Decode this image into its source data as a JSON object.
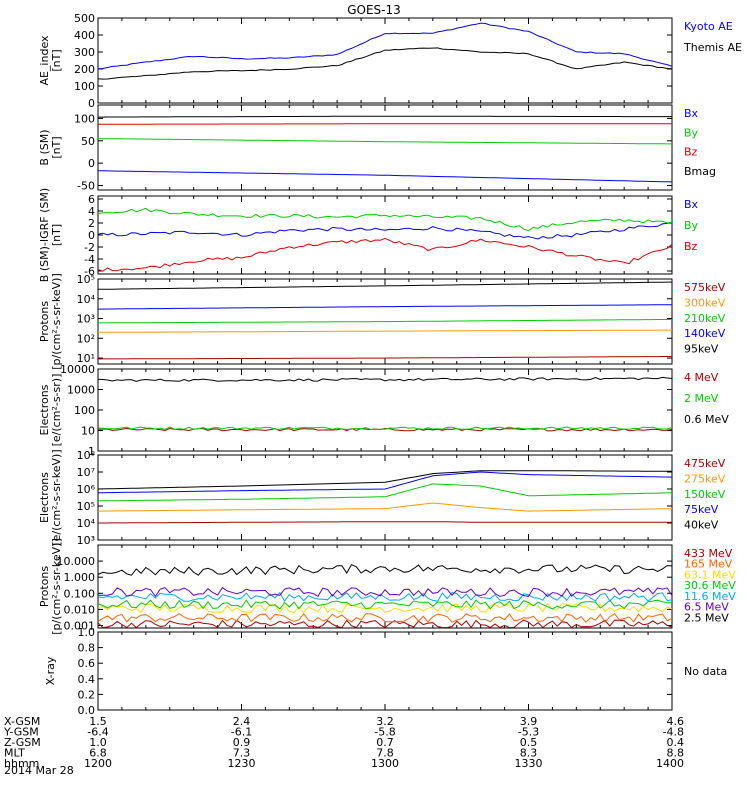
{
  "title": "GOES-13",
  "panels": [
    {
      "ylabel": [
        "AE_index",
        "[nT]"
      ],
      "scale": "linear",
      "ylim": [
        0,
        500
      ],
      "yticks": [
        "0",
        "100",
        "200",
        "300",
        "400",
        "500"
      ],
      "ytick_values": [
        0,
        100,
        200,
        300,
        400,
        500
      ],
      "legend": [
        {
          "label": "Kyoto AE",
          "color": "#0000ff"
        },
        {
          "label": "Themis AE",
          "color": "#000000"
        }
      ]
    },
    {
      "ylabel": [
        "B (SM)",
        "[nT]"
      ],
      "scale": "linear",
      "ylim": [
        -60,
        130
      ],
      "yticks": [
        "-50",
        "0",
        "50",
        "100"
      ],
      "ytick_values": [
        -50,
        0,
        50,
        100
      ],
      "legend": [
        {
          "label": "Bx",
          "color": "#0000ff"
        },
        {
          "label": "By",
          "color": "#00cc00"
        },
        {
          "label": "Bz",
          "color": "#dd0000"
        },
        {
          "label": "Bmag",
          "color": "#000000"
        }
      ]
    },
    {
      "ylabel": [
        "B (SM)-IGRF (SM)",
        "[nT]"
      ],
      "scale": "linear",
      "ylim": [
        -6.5,
        6.5
      ],
      "yticks": [
        "-6",
        "-4",
        "-2",
        "0",
        "2",
        "4",
        "6"
      ],
      "ytick_values": [
        -6,
        -4,
        -2,
        0,
        2,
        4,
        6
      ],
      "legend": [
        {
          "label": "Bx",
          "color": "#0000ff"
        },
        {
          "label": "By",
          "color": "#00cc00"
        },
        {
          "label": "Bz",
          "color": "#dd0000"
        }
      ]
    },
    {
      "ylabel": [
        "Protons",
        "[p/(cm²-s-sr-keV)]"
      ],
      "scale": "log",
      "ylim": [
        5,
        100000
      ],
      "yticks": [
        "10¹",
        "10²",
        "10³",
        "10⁴",
        "10⁵"
      ],
      "ytick_values": [
        10,
        100,
        1000,
        10000,
        100000
      ],
      "legend": [
        {
          "label": "575keV",
          "color": "#aa0000"
        },
        {
          "label": "300keV",
          "color": "#ff9900"
        },
        {
          "label": "210keV",
          "color": "#00cc00"
        },
        {
          "label": "140keV",
          "color": "#0000ff"
        },
        {
          "label": "95keV",
          "color": "#000000"
        }
      ]
    },
    {
      "ylabel": [
        "Electrons",
        "[e/(cm²-s-sr)]"
      ],
      "scale": "log",
      "ylim": [
        1,
        10000
      ],
      "yticks": [
        "1",
        "10",
        "100",
        "1000",
        "10000"
      ],
      "ytick_values": [
        1,
        10,
        100,
        1000,
        10000
      ],
      "legend": [
        {
          "label": "4 MeV",
          "color": "#aa0000"
        },
        {
          "label": "2 MeV",
          "color": "#00cc00"
        },
        {
          "label": "0.6 MeV",
          "color": "#000000"
        }
      ]
    },
    {
      "ylabel": [
        "Electrons",
        "[e/(cm²-s-sr-keV)]"
      ],
      "scale": "log",
      "ylim": [
        1000,
        100000000
      ],
      "yticks": [
        "10³",
        "10⁴",
        "10⁵",
        "10⁶",
        "10⁷",
        "10⁸"
      ],
      "ytick_values": [
        1000,
        10000,
        100000,
        1000000,
        10000000,
        100000000
      ],
      "legend": [
        {
          "label": "475keV",
          "color": "#aa0000"
        },
        {
          "label": "275keV",
          "color": "#ff9900"
        },
        {
          "label": "150keV",
          "color": "#00cc00"
        },
        {
          "label": "75keV",
          "color": "#0000ff"
        },
        {
          "label": "40keV",
          "color": "#000000"
        }
      ]
    },
    {
      "ylabel": [
        "Protons",
        "[p/(cm²-s-sr-keV)]"
      ],
      "scale": "log",
      "ylim": [
        0.0007,
        100
      ],
      "yticks": [
        "0.001",
        "0.010",
        "0.100",
        "1.000",
        "10.000"
      ],
      "ytick_values": [
        0.001,
        0.01,
        0.1,
        1,
        10
      ],
      "legend": [
        {
          "label": "433 MeV",
          "color": "#aa0000"
        },
        {
          "label": "165 MeV",
          "color": "#ff6600"
        },
        {
          "label": "63.1 MeV",
          "color": "#ffdd00"
        },
        {
          "label": "30.6 MeV",
          "color": "#00cc00"
        },
        {
          "label": "11.6 MeV",
          "color": "#00aaff"
        },
        {
          "label": "6.5 MeV",
          "color": "#6600cc"
        },
        {
          "label": "2.5 MeV",
          "color": "#000000"
        }
      ]
    },
    {
      "ylabel": [
        "X-ray"
      ],
      "scale": "linear",
      "ylim": [
        0,
        1
      ],
      "yticks": [
        "0.0",
        "0.2",
        "0.4",
        "0.6",
        "0.8",
        "1.0"
      ],
      "ytick_values": [
        0,
        0.2,
        0.4,
        0.6,
        0.8,
        1.0
      ],
      "legend": [],
      "nodata": "No data"
    }
  ],
  "footer": {
    "rows": [
      {
        "label": "X-GSM",
        "values": [
          "1.5",
          "2.4",
          "3.2",
          "3.9",
          "4.6"
        ]
      },
      {
        "label": "Y-GSM",
        "values": [
          "-6.4",
          "-6.1",
          "-5.8",
          "-5.3",
          "-4.8"
        ]
      },
      {
        "label": "Z-GSM",
        "values": [
          "1.0",
          "0.9",
          "0.7",
          "0.5",
          "0.4"
        ]
      },
      {
        "label": "MLT",
        "values": [
          "6.8",
          "7.3",
          "7.8",
          "8.3",
          "8.8"
        ]
      },
      {
        "label": "hhmm",
        "values": [
          "1200",
          "1230",
          "1300",
          "1330",
          "1400"
        ]
      }
    ],
    "date": "2014 Mar 28"
  },
  "chart_data": {
    "type": "line",
    "title": "GOES-13",
    "x_label": "hhmm",
    "x_ticks": [
      "1200",
      "1230",
      "1300",
      "1330",
      "1400"
    ],
    "x_range": [
      "1200",
      "1400"
    ],
    "panels": [
      {
        "x": [
          "1200",
          "1210",
          "1220",
          "1230",
          "1240",
          "1250",
          "1300",
          "1310",
          "1320",
          "1330",
          "1340",
          "1350",
          "1400"
        ],
        "series": [
          {
            "name": "Kyoto AE",
            "values": [
              200,
              240,
              275,
              260,
              265,
              285,
              410,
              410,
              470,
              420,
              300,
              290,
              215
            ]
          },
          {
            "name": "Themis AE",
            "values": [
              140,
              160,
              185,
              190,
              200,
              220,
              310,
              325,
              300,
              290,
              200,
              240,
              200
            ]
          }
        ]
      },
      {
        "x": [
          "1200",
          "1300",
          "1400"
        ],
        "series": [
          {
            "name": "Bx",
            "values": [
              -17,
              -27,
              -42
            ]
          },
          {
            "name": "By",
            "values": [
              55,
              48,
              43
            ]
          },
          {
            "name": "Bz",
            "values": [
              87,
              88,
              88
            ]
          },
          {
            "name": "Bmag",
            "values": [
              103,
              105,
              104
            ]
          }
        ]
      },
      {
        "x": [
          "1200",
          "1210",
          "1220",
          "1230",
          "1240",
          "1250",
          "1300",
          "1310",
          "1320",
          "1330",
          "1340",
          "1350",
          "1400"
        ],
        "series": [
          {
            "name": "Bx",
            "values": [
              0,
              0.2,
              0.5,
              0,
              0.8,
              1,
              0.8,
              1.2,
              0.5,
              -0.5,
              0,
              1,
              2
            ]
          },
          {
            "name": "By",
            "values": [
              3.8,
              4.2,
              3.5,
              3.2,
              3.2,
              3.0,
              3.3,
              3.0,
              2.8,
              1.0,
              2.2,
              2.5,
              2.0
            ]
          },
          {
            "name": "Bz",
            "values": [
              -5.8,
              -5.5,
              -4.3,
              -3.8,
              -2.0,
              -1.2,
              -0.8,
              -2.5,
              -0.8,
              -2.0,
              -3.5,
              -4.8,
              -1.8
            ]
          }
        ]
      },
      {
        "x": [
          "1200",
          "1300",
          "1400"
        ],
        "series": [
          {
            "name": "575keV",
            "values": [
              9,
              10,
              12
            ]
          },
          {
            "name": "300keV",
            "values": [
              200,
              230,
              260
            ]
          },
          {
            "name": "210keV",
            "values": [
              600,
              700,
              900
            ]
          },
          {
            "name": "140keV",
            "values": [
              3000,
              4000,
              5000
            ]
          },
          {
            "name": "95keV",
            "values": [
              30000,
              45000,
              70000
            ]
          }
        ]
      },
      {
        "x": [
          "1200",
          "1300",
          "1400"
        ],
        "series": [
          {
            "name": "4 MeV",
            "values": [
              11,
              11,
              11
            ]
          },
          {
            "name": "2 MeV",
            "values": [
              13,
              13,
              13
            ]
          },
          {
            "name": "0.6 MeV",
            "values": [
              2800,
              3000,
              3500
            ]
          }
        ]
      },
      {
        "x": [
          "1200",
          "1230",
          "1300",
          "1310",
          "1320",
          "1330",
          "1400"
        ],
        "series": [
          {
            "name": "475keV",
            "values": [
              10000,
              11000,
              12000,
              12000,
              11000,
              11000,
              11000
            ]
          },
          {
            "name": "275keV",
            "values": [
              50000,
              60000,
              70000,
              150000,
              80000,
              50000,
              70000
            ]
          },
          {
            "name": "150keV",
            "values": [
              200000,
              250000,
              350000,
              2000000,
              1500000,
              400000,
              600000
            ]
          },
          {
            "name": "75keV",
            "values": [
              600000,
              800000,
              1000000,
              6000000,
              10000000,
              7000000,
              5000000
            ]
          },
          {
            "name": "40keV",
            "values": [
              1000000,
              1500000,
              2500000,
              8000000,
              12000000,
              12000000,
              11000000
            ]
          }
        ]
      },
      {
        "x": [
          "1200",
          "1300",
          "1400"
        ],
        "series": [
          {
            "name": "433 MeV",
            "values": [
              0.0012,
              0.0012,
              0.0012
            ]
          },
          {
            "name": "165 MeV",
            "values": [
              0.003,
              0.003,
              0.003
            ]
          },
          {
            "name": "63.1 MeV",
            "values": [
              0.012,
              0.012,
              0.012
            ]
          },
          {
            "name": "30.6 MeV",
            "values": [
              0.02,
              0.02,
              0.02
            ]
          },
          {
            "name": "11.6 MeV",
            "values": [
              0.06,
              0.06,
              0.06
            ]
          },
          {
            "name": "6.5 MeV",
            "values": [
              0.12,
              0.12,
              0.12
            ]
          },
          {
            "name": "2.5 MeV",
            "values": [
              2,
              3.5,
              3
            ]
          }
        ]
      },
      {
        "x": [],
        "series": []
      }
    ]
  }
}
